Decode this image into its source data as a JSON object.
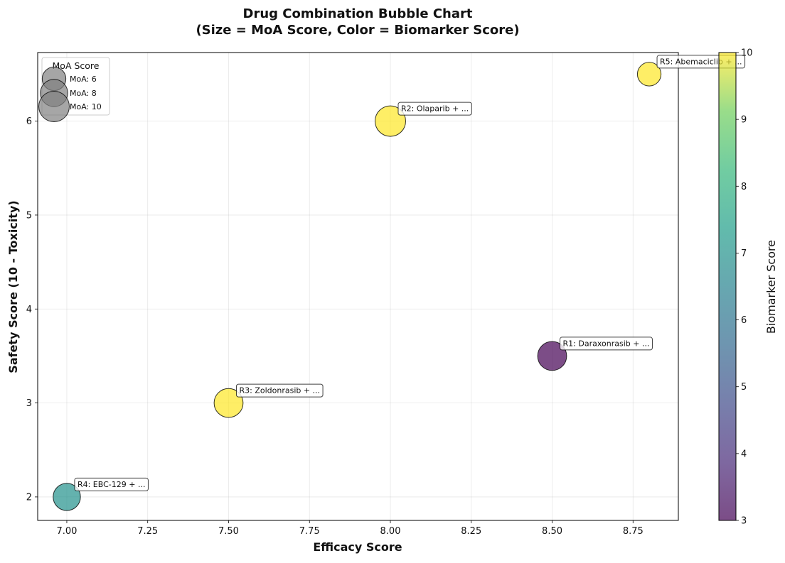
{
  "chart_data": {
    "type": "scatter",
    "title_line1": "Drug Combination Bubble Chart",
    "title_line2": "(Size = MoA Score, Color = Biomarker Score)",
    "xlabel": "Efficacy Score",
    "ylabel": "Safety Score (10 - Toxicity)",
    "xlim": [
      6.91,
      8.89
    ],
    "ylim": [
      1.75,
      6.73
    ],
    "xticks": [
      "7.00",
      "7.25",
      "7.50",
      "7.75",
      "8.00",
      "8.25",
      "8.50",
      "8.75"
    ],
    "xtick_values": [
      7.0,
      7.25,
      7.5,
      7.75,
      8.0,
      8.25,
      8.5,
      8.75
    ],
    "yticks": [
      "2",
      "3",
      "4",
      "5",
      "6"
    ],
    "ytick_values": [
      2,
      3,
      4,
      5,
      6
    ],
    "grid": true,
    "colormap": "viridis",
    "colorbar": {
      "label": "Biomarker Score",
      "range": [
        3,
        10
      ],
      "ticks": [
        "3",
        "4",
        "5",
        "6",
        "7",
        "8",
        "9",
        "10"
      ],
      "tick_values": [
        3,
        4,
        5,
        6,
        7,
        8,
        9,
        10
      ]
    },
    "size_legend": {
      "title": "MoA Score",
      "placement": "top-left",
      "entries": [
        {
          "label": "MoA: 6",
          "moa": 6
        },
        {
          "label": "MoA: 8",
          "moa": 8
        },
        {
          "label": "MoA: 10",
          "moa": 10
        }
      ]
    },
    "points": [
      {
        "label": "R1: Daraxonrasib + ...",
        "efficacy": 8.5,
        "safety": 3.5,
        "moa": 9,
        "biomarker": 3
      },
      {
        "label": "R2: Olaparib + ...",
        "efficacy": 8.0,
        "safety": 6.0,
        "moa": 10,
        "biomarker": 10
      },
      {
        "label": "R3: Zoldonrasib + ...",
        "efficacy": 7.5,
        "safety": 3.0,
        "moa": 9,
        "biomarker": 10
      },
      {
        "label": "R4: EBC-129 + ...",
        "efficacy": 7.0,
        "safety": 2.0,
        "moa": 8,
        "biomarker": 7
      },
      {
        "label": "R5: Abemaciclib + ...",
        "efficacy": 8.8,
        "safety": 6.5,
        "moa": 6,
        "biomarker": 10
      }
    ]
  }
}
